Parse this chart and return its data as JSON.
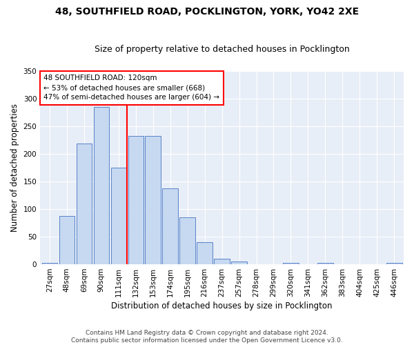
{
  "title1": "48, SOUTHFIELD ROAD, POCKLINGTON, YORK, YO42 2XE",
  "title2": "Size of property relative to detached houses in Pocklington",
  "xlabel": "Distribution of detached houses by size in Pocklington",
  "ylabel": "Number of detached properties",
  "categories": [
    "27sqm",
    "48sqm",
    "69sqm",
    "90sqm",
    "111sqm",
    "132sqm",
    "153sqm",
    "174sqm",
    "195sqm",
    "216sqm",
    "237sqm",
    "257sqm",
    "278sqm",
    "299sqm",
    "320sqm",
    "341sqm",
    "362sqm",
    "383sqm",
    "404sqm",
    "425sqm",
    "446sqm"
  ],
  "values": [
    2,
    87,
    218,
    285,
    175,
    232,
    232,
    138,
    85,
    40,
    10,
    5,
    0,
    0,
    2,
    0,
    3,
    0,
    0,
    0,
    2
  ],
  "bar_color": "#c6d9f0",
  "bar_edge_color": "#4472c4",
  "vline_x": 4.5,
  "vline_color": "red",
  "annotation_text": "48 SOUTHFIELD ROAD: 120sqm\n← 53% of detached houses are smaller (668)\n47% of semi-detached houses are larger (604) →",
  "annotation_box_color": "white",
  "annotation_box_edge": "red",
  "ylim": [
    0,
    350
  ],
  "yticks": [
    0,
    50,
    100,
    150,
    200,
    250,
    300,
    350
  ],
  "background_color": "#e8eef7",
  "footer": "Contains HM Land Registry data © Crown copyright and database right 2024.\nContains public sector information licensed under the Open Government Licence v3.0.",
  "title1_fontsize": 10,
  "title2_fontsize": 9,
  "xlabel_fontsize": 8.5,
  "ylabel_fontsize": 8.5,
  "footer_fontsize": 6.5,
  "tick_fontsize": 7.5,
  "annot_fontsize": 7.5
}
